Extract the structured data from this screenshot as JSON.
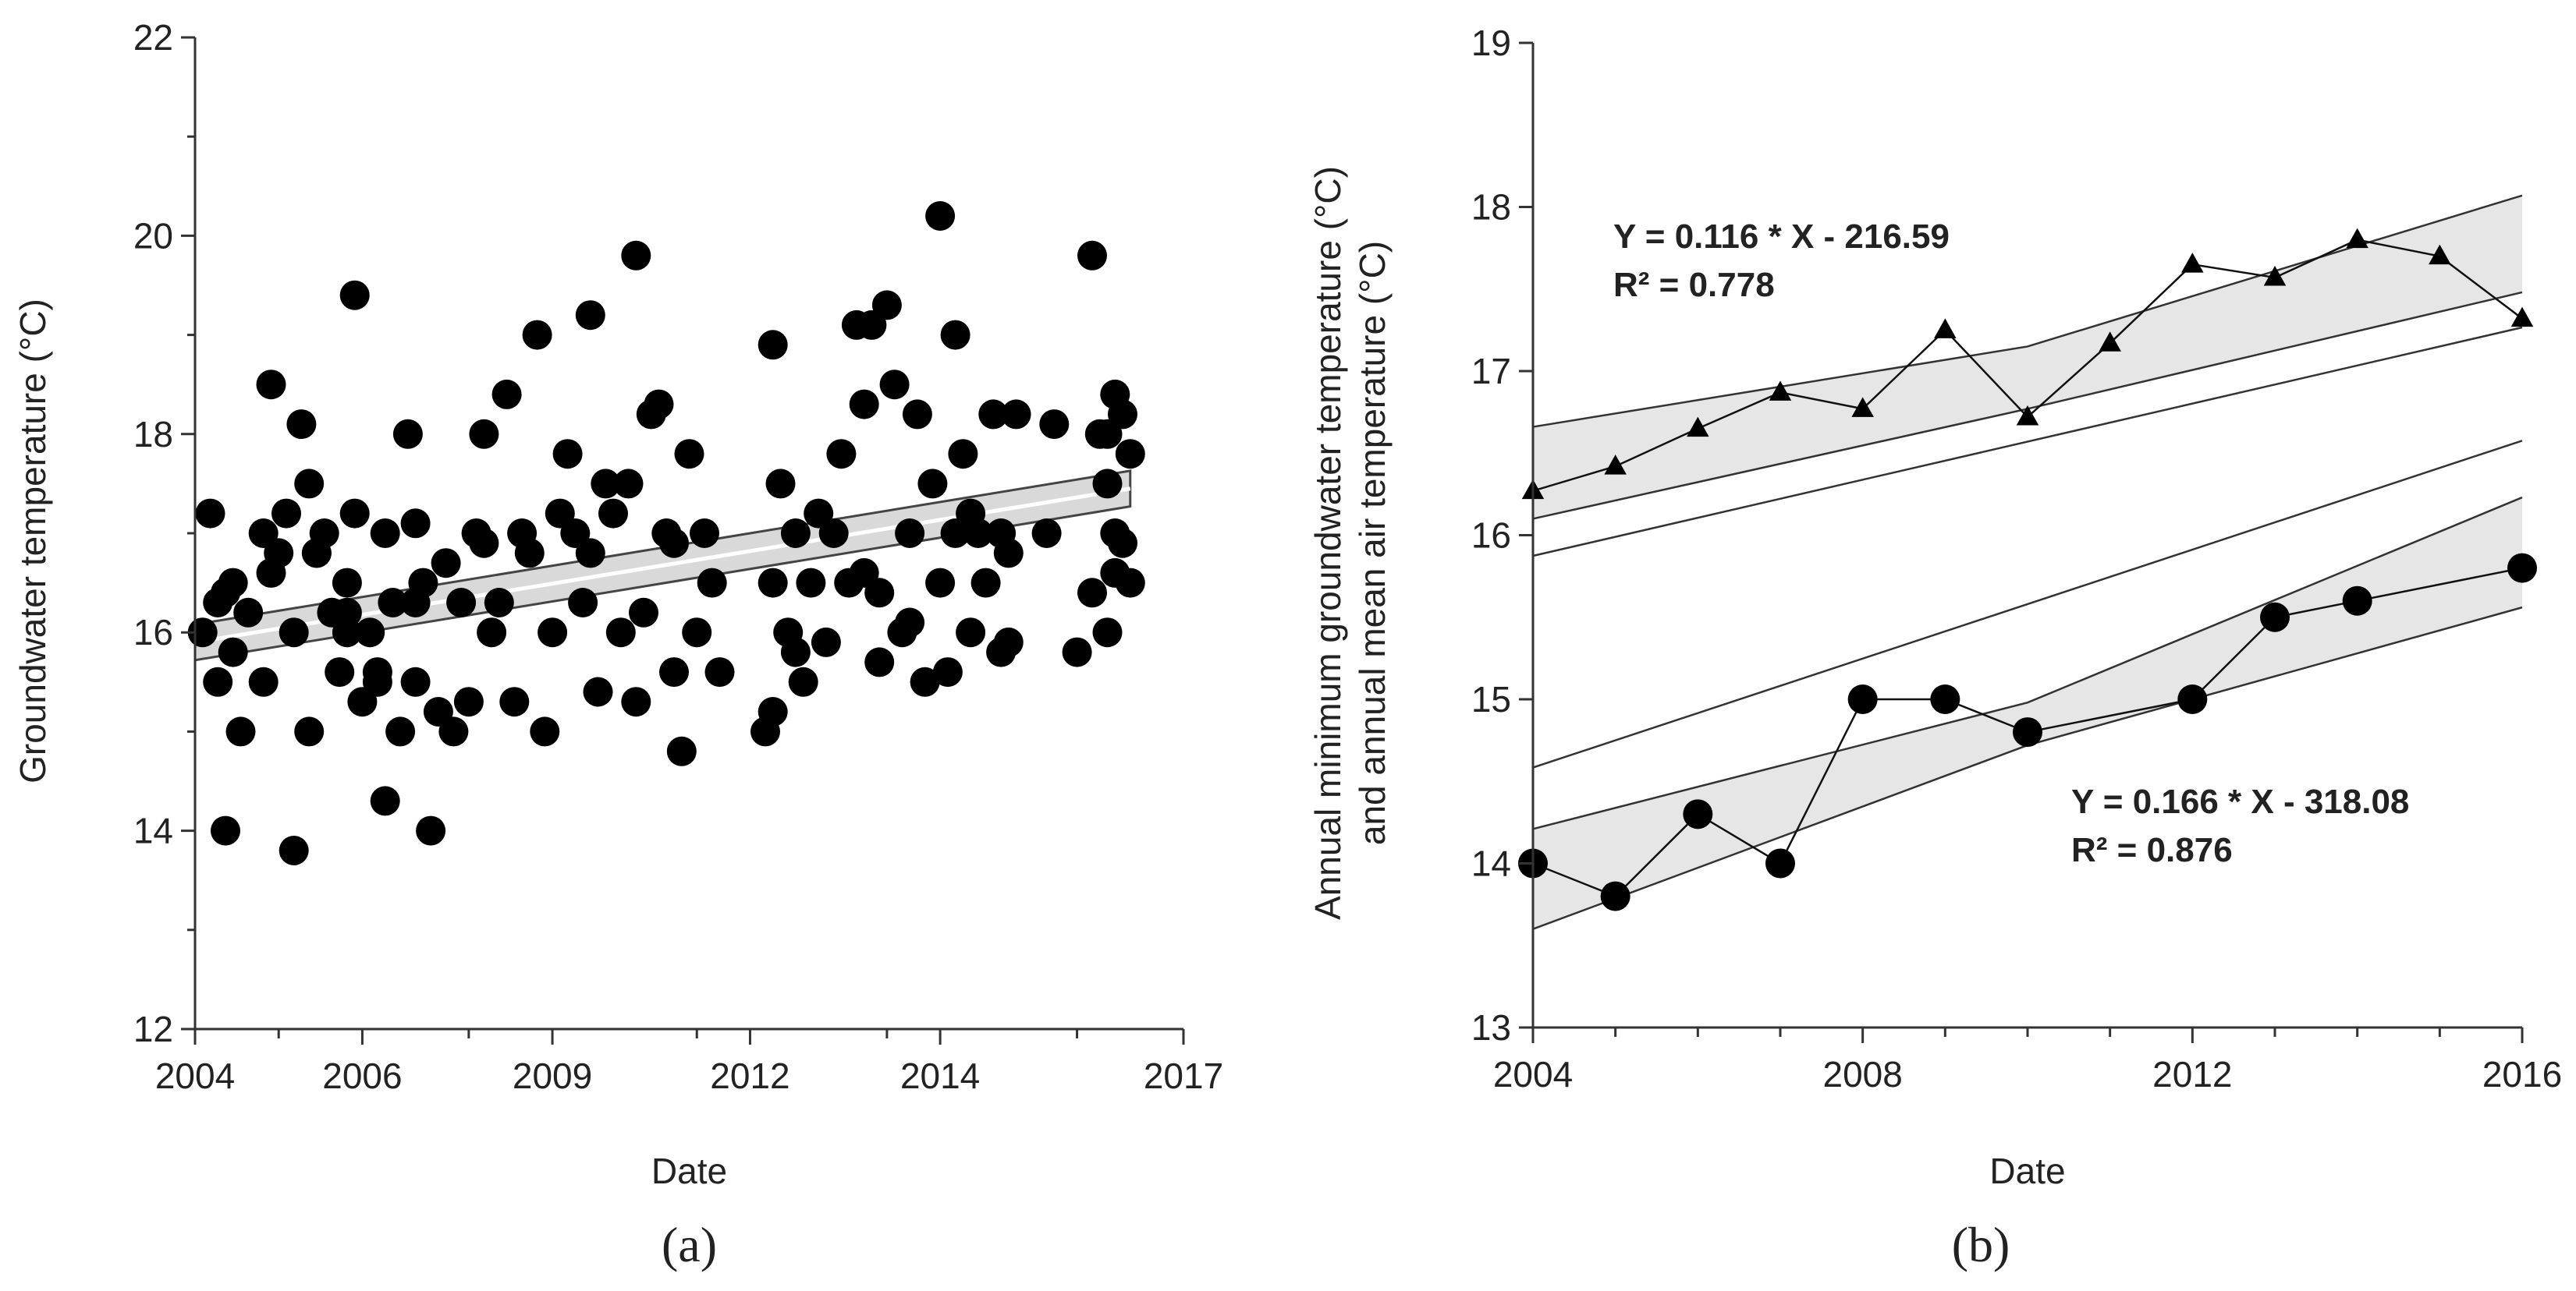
{
  "chart_data": [
    {
      "type": "scatter",
      "panel_label": "(a)",
      "xlabel": "Date",
      "ylabel": "Groundwater temperature (°C)",
      "xlim": [
        2004,
        2017
      ],
      "ylim": [
        12,
        22
      ],
      "x_ticks": [
        2004,
        2006,
        2009,
        2012,
        2014,
        2017
      ],
      "x_tick_labels": [
        "2004",
        "2006",
        "2009",
        "2012",
        "2014",
        "2017"
      ],
      "y_ticks": [
        12,
        14,
        16,
        18,
        20,
        22
      ],
      "y_tick_labels": [
        "12",
        "14",
        "16",
        "18",
        "20",
        "22"
      ],
      "trend": {
        "x": [
          2004.0,
          2016.3
        ],
        "y": [
          15.9,
          17.45
        ],
        "band_halfwidth": 0.18
      },
      "series": [
        {
          "name": "Groundwater temperature",
          "x": [
            2004.1,
            2004.2,
            2004.3,
            2004.3,
            2004.4,
            2004.5,
            2004.5,
            2004.6,
            2004.7,
            2004.9,
            2004.9,
            2005.0,
            2005.0,
            2005.2,
            2005.3,
            2005.3,
            2005.4,
            2005.5,
            2005.5,
            2005.6,
            2005.7,
            2005.8,
            2005.9,
            2006.0,
            2006.0,
            2006.1,
            2006.1,
            2006.2,
            2006.3,
            2006.4,
            2006.5,
            2006.5,
            2006.6,
            2006.7,
            2006.8,
            2006.9,
            2006.9,
            2007.0,
            2007.1,
            2007.2,
            2007.3,
            2007.4,
            2007.5,
            2007.6,
            2007.7,
            2007.8,
            2007.9,
            2008.0,
            2008.1,
            2008.2,
            2008.3,
            2008.5,
            2008.6,
            2008.7,
            2008.8,
            2008.9,
            2009.0,
            2009.1,
            2009.2,
            2009.3,
            2009.4,
            2009.5,
            2009.6,
            2009.7,
            2009.8,
            2009.9,
            2010.0,
            2010.1,
            2010.2,
            2010.3,
            2010.4,
            2010.5,
            2010.6,
            2010.7,
            2010.8,
            2011.5,
            2011.6,
            2011.6,
            2011.7,
            2011.8,
            2011.9,
            2012.0,
            2012.1,
            2012.2,
            2012.3,
            2012.4,
            2012.5,
            2012.6,
            2012.7,
            2012.8,
            2012.9,
            2013.0,
            2013.1,
            2013.2,
            2013.3,
            2013.4,
            2013.5,
            2013.6,
            2013.7,
            2013.8,
            2013.8,
            2013.9,
            2014.0,
            2014.0,
            2014.1,
            2014.2,
            2014.3,
            2014.4,
            2014.5,
            2014.6,
            2014.6,
            2014.7,
            2014.8,
            2015.2,
            2015.3,
            2015.6,
            2015.8,
            2015.8,
            2016.0,
            2016.0,
            2016.1,
            2016.1,
            2016.2,
            2016.2,
            2016.3,
            2016.3,
            2016.0,
            2015.9,
            2006.4,
            2006.0,
            2009.2,
            2011.6,
            2004.4,
            2005.1,
            2007.8,
            2008.4,
            2009.8,
            2010.3,
            2012.8,
            2013.4,
            2014.7,
            2016.1,
            2005.6,
            2006.9,
            2010.9,
            2011.9,
            2013.0,
            2014.2
          ],
          "y": [
            16.0,
            17.2,
            15.5,
            16.3,
            14.0,
            16.5,
            15.8,
            15.0,
            16.2,
            17.0,
            15.5,
            16.6,
            18.5,
            17.2,
            16.0,
            13.8,
            18.1,
            17.5,
            15.0,
            16.8,
            17.0,
            16.2,
            15.6,
            16.5,
            16.0,
            19.4,
            17.2,
            15.3,
            16.0,
            15.5,
            17.0,
            14.3,
            16.3,
            15.0,
            18.0,
            16.3,
            15.5,
            16.5,
            14.0,
            15.2,
            16.7,
            15.0,
            16.3,
            15.3,
            17.0,
            18.0,
            16.0,
            16.3,
            18.4,
            15.3,
            17.0,
            19.0,
            15.0,
            16.0,
            17.2,
            17.8,
            17.0,
            16.3,
            19.2,
            15.4,
            17.5,
            17.2,
            16.0,
            17.5,
            19.8,
            16.2,
            18.2,
            18.3,
            17.0,
            15.6,
            14.8,
            17.8,
            16.0,
            17.0,
            16.5,
            15.0,
            16.5,
            18.9,
            17.5,
            16.0,
            17.0,
            15.5,
            16.5,
            17.2,
            15.9,
            17.0,
            17.8,
            16.5,
            19.1,
            18.3,
            19.1,
            15.7,
            19.3,
            18.5,
            16.0,
            17.0,
            18.2,
            15.5,
            17.5,
            16.5,
            20.2,
            15.6,
            19.0,
            17.0,
            17.8,
            16.0,
            17.0,
            16.5,
            18.2,
            17.0,
            15.8,
            16.8,
            18.2,
            17.0,
            18.1,
            15.8,
            16.4,
            19.8,
            18.0,
            16.0,
            18.4,
            17.0,
            18.2,
            16.9,
            17.8,
            16.5,
            17.5,
            18.0,
            15.6,
            16.2,
            16.8,
            15.2,
            16.4,
            16.8,
            16.9,
            16.8,
            15.3,
            16.9,
            16.6,
            16.1,
            15.9,
            16.6,
            16.8,
            17.1,
            15.6,
            15.8,
            16.4,
            17.2
          ]
        }
      ]
    },
    {
      "type": "line",
      "panel_label": "(b)",
      "xlabel": "Date",
      "ylabel_line1": "Annual minimum groundwater temperature (°C)",
      "ylabel_line2": "and annual mean air temperature (°C)",
      "xlim": [
        2004,
        2016
      ],
      "ylim": [
        13,
        19
      ],
      "x_ticks": [
        2004,
        2008,
        2012,
        2016
      ],
      "x_tick_labels": [
        "2004",
        "2008",
        "2012",
        "2016"
      ],
      "x_minor_ticks": [
        2005,
        2006,
        2007,
        2009,
        2010,
        2011,
        2013,
        2014,
        2015
      ],
      "y_ticks": [
        13,
        14,
        15,
        16,
        17,
        18,
        19
      ],
      "y_tick_labels": [
        "13",
        "14",
        "15",
        "16",
        "17",
        "18",
        "19"
      ],
      "series": [
        {
          "name": "Annual mean air temperature",
          "marker": "triangle",
          "x": [
            2004,
            2005,
            2006,
            2007,
            2008,
            2009,
            2010,
            2011,
            2012,
            2013,
            2014,
            2015,
            2016
          ],
          "y": [
            16.27,
            16.42,
            16.65,
            16.87,
            16.77,
            17.25,
            16.72,
            17.17,
            17.65,
            17.57,
            17.8,
            17.7,
            17.32
          ],
          "fit": {
            "slope": 0.116,
            "intercept": -216.59,
            "band_x": [
              2004,
              2010,
              2016
            ],
            "band_upper": [
              16.66,
              17.15,
              18.07
            ],
            "band_lower": [
              16.1,
              16.77,
              17.48
            ]
          },
          "equation": "Y = 0.116 * X - 216.59",
          "r2": "R² = 0.778"
        },
        {
          "name": "Annual minimum groundwater temperature",
          "marker": "circle",
          "x": [
            2004,
            2005,
            2006,
            2007,
            2008,
            2009,
            2010,
            2012,
            2013,
            2014,
            2016
          ],
          "y": [
            14.0,
            13.8,
            14.3,
            14.0,
            15.0,
            15.0,
            14.8,
            15.0,
            15.5,
            15.6,
            15.8
          ],
          "fit": {
            "slope": 0.166,
            "intercept": -318.08,
            "band_x": [
              2004,
              2010,
              2016
            ],
            "band_upper": [
              14.21,
              14.98,
              16.23
            ],
            "band_lower": [
              13.6,
              14.72,
              15.56
            ]
          },
          "equation": "Y = 0.166 * X - 318.08",
          "r2": "R² = 0.876"
        }
      ]
    }
  ]
}
